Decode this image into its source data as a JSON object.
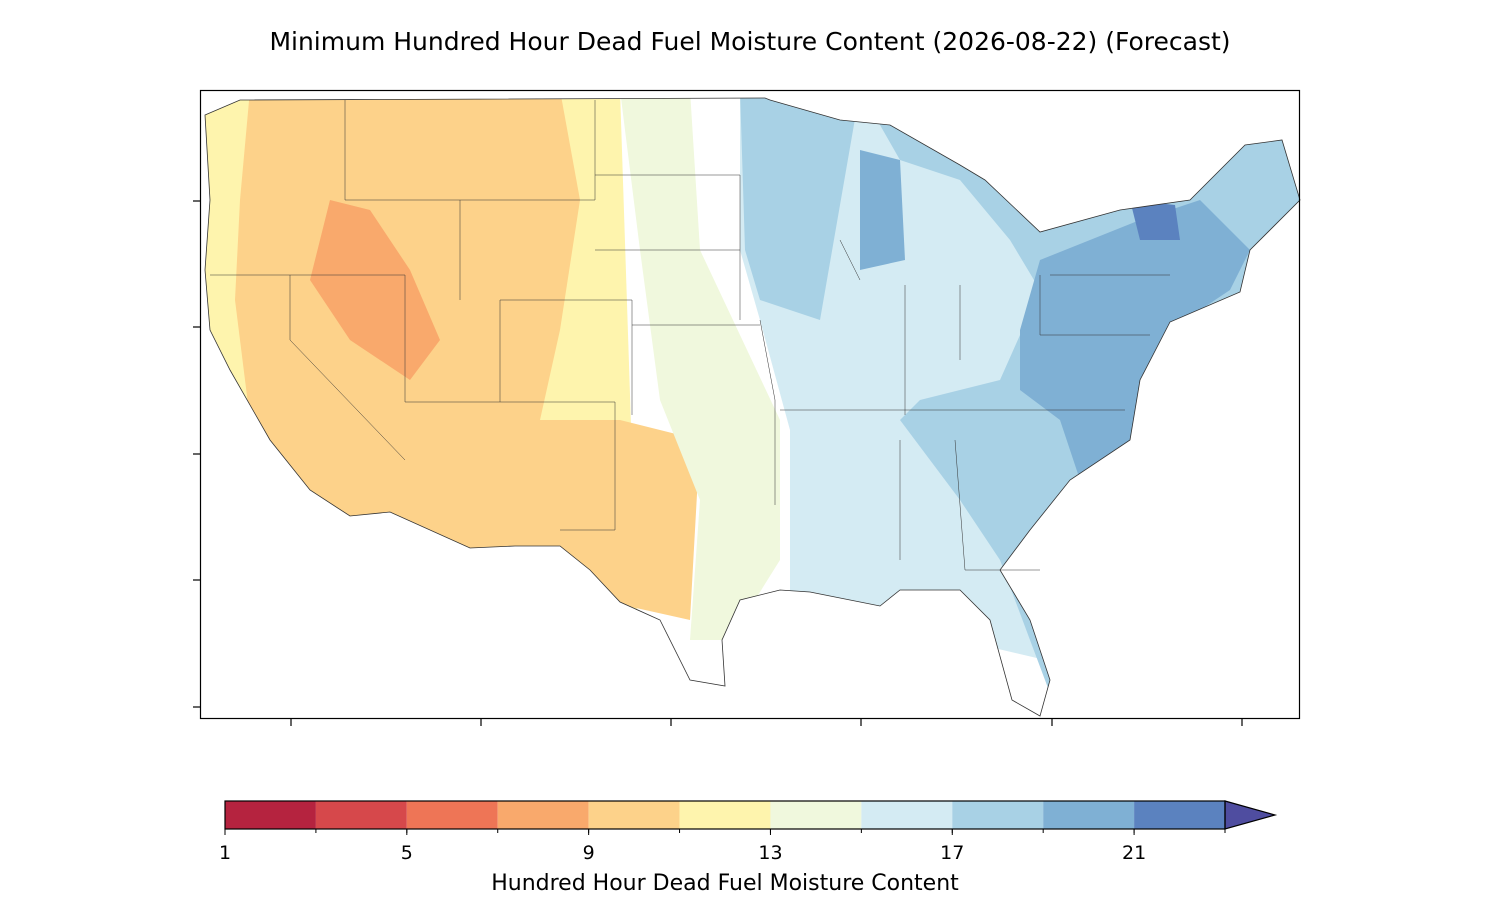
{
  "chart_data": {
    "type": "contour-map",
    "title": "Minimum Hundred Hour Dead Fuel Moisture Content (2026-08-22) (Forecast)",
    "colorbar": {
      "label": "Hundred Hour Dead Fuel Moisture Content",
      "levels": [
        1,
        3,
        5,
        7,
        9,
        11,
        13,
        15,
        17,
        19,
        21,
        23
      ],
      "colors": [
        "#b5233f",
        "#d6484b",
        "#ee7556",
        "#f9a96c",
        "#fdd28a",
        "#fef4ad",
        "#f0f8dd",
        "#d4ebf3",
        "#a8d1e5",
        "#7fb0d4",
        "#5b82bf"
      ],
      "extend_color": "#4f4da0",
      "ticks": [
        1,
        5,
        9,
        13,
        17,
        21
      ],
      "lim": [
        1,
        23
      ]
    }
  }
}
